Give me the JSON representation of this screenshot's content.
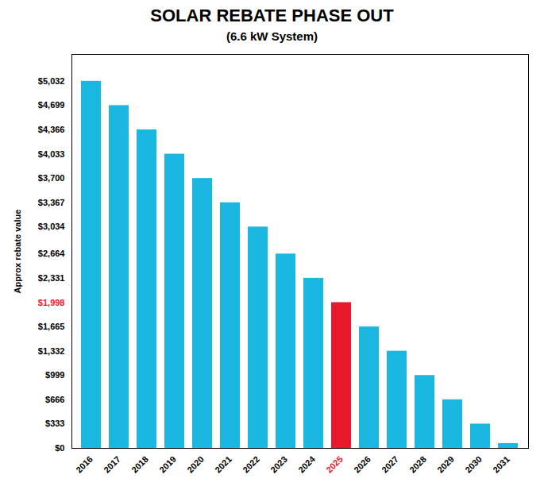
{
  "chart_data": {
    "type": "bar",
    "title": "SOLAR REBATE PHASE OUT",
    "subtitle": "(6.6 kW System)",
    "ylabel": "Approx rebate value",
    "categories": [
      "2016",
      "2017",
      "2018",
      "2019",
      "2020",
      "2021",
      "2022",
      "2023",
      "2024",
      "2025",
      "2026",
      "2027",
      "2028",
      "2029",
      "2030",
      "2031"
    ],
    "values": [
      5032,
      4699,
      4366,
      4033,
      3700,
      3367,
      3034,
      2664,
      2331,
      1998,
      1665,
      1332,
      999,
      666,
      333,
      66
    ],
    "colors": [
      "#1ab8e0",
      "#1ab8e0",
      "#1ab8e0",
      "#1ab8e0",
      "#1ab8e0",
      "#1ab8e0",
      "#1ab8e0",
      "#1ab8e0",
      "#1ab8e0",
      "#e8192c",
      "#1ab8e0",
      "#1ab8e0",
      "#1ab8e0",
      "#1ab8e0",
      "#1ab8e0",
      "#1ab8e0"
    ],
    "ylim": [
      0,
      5400
    ],
    "yticks": [
      {
        "value": 0,
        "label": "$0"
      },
      {
        "value": 333,
        "label": "$333"
      },
      {
        "value": 666,
        "label": "$666"
      },
      {
        "value": 999,
        "label": "$999"
      },
      {
        "value": 1332,
        "label": "$1,332"
      },
      {
        "value": 1665,
        "label": "$1,665"
      },
      {
        "value": 1998,
        "label": "$1,998"
      },
      {
        "value": 2331,
        "label": "$2,331"
      },
      {
        "value": 2664,
        "label": "$2,664"
      },
      {
        "value": 3034,
        "label": "$3,034"
      },
      {
        "value": 3367,
        "label": "$3,367"
      },
      {
        "value": 3700,
        "label": "$3,700"
      },
      {
        "value": 4033,
        "label": "$4,033"
      },
      {
        "value": 4366,
        "label": "$4,366"
      },
      {
        "value": 4699,
        "label": "$4,699"
      },
      {
        "value": 5032,
        "label": "$5,032"
      }
    ],
    "grid": false
  }
}
